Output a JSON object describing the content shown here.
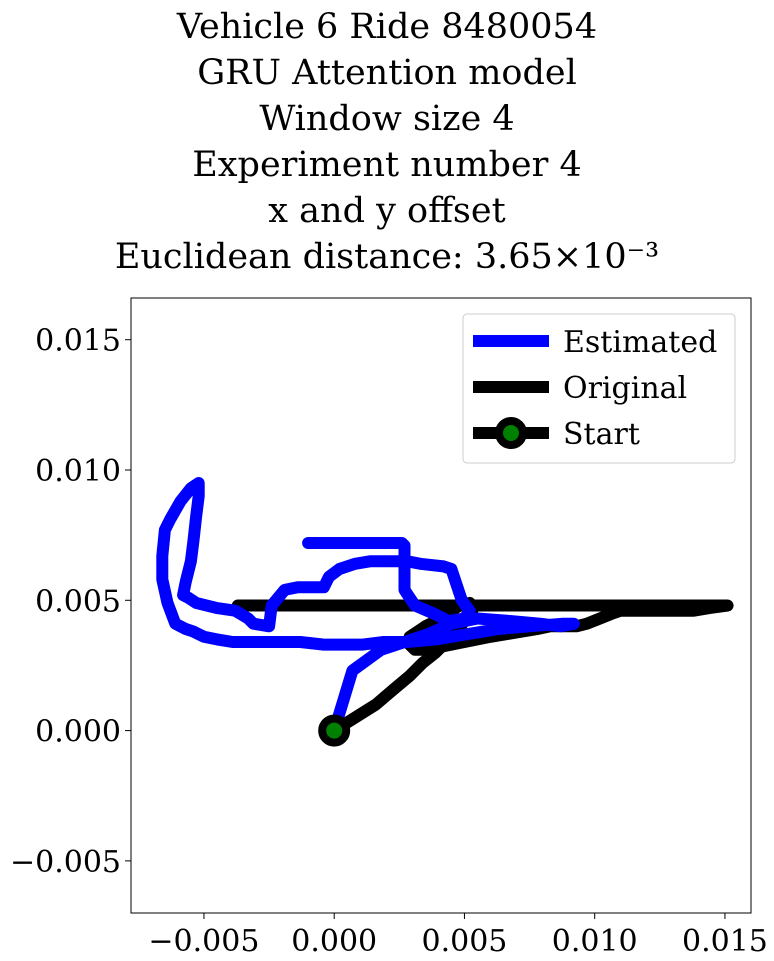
{
  "chart_data": {
    "type": "line",
    "title_lines": [
      "Vehicle 6 Ride 8480054",
      "GRU Attention model",
      "Window size 4",
      "Experiment number 4",
      "x and y offset",
      "Euclidean distance: 3.65×10⁻³"
    ],
    "xlabel": "",
    "ylabel": "",
    "xlim": [
      -0.0078,
      0.016
    ],
    "ylim": [
      -0.007,
      0.0166
    ],
    "xticks": [
      -0.005,
      0.0,
      0.005,
      0.01,
      0.015
    ],
    "xtick_labels": [
      "−0.005",
      "0.000",
      "0.005",
      "0.010",
      "0.015"
    ],
    "yticks": [
      -0.005,
      0.0,
      0.005,
      0.01,
      0.015
    ],
    "ytick_labels": [
      "−0.005",
      "0.000",
      "0.005",
      "0.010",
      "0.015"
    ],
    "grid": false,
    "legend_position": "top-right",
    "series": [
      {
        "name": "Estimated",
        "color": "#0000ff",
        "x": [
          0.0,
          0.0007,
          0.0018,
          0.0027,
          0.0036,
          0.0045,
          0.0055,
          0.0068,
          0.0079,
          0.0087,
          0.0092,
          0.0088,
          0.0075,
          0.0063,
          0.0051,
          0.0039,
          0.0028,
          0.0019,
          0.0011,
          0.0004,
          -0.0004,
          -0.0013,
          -0.0022,
          -0.0031,
          -0.0039,
          -0.0045,
          -0.005,
          -0.0054,
          -0.0057,
          -0.0061,
          -0.0064,
          -0.0066,
          -0.0066,
          -0.0065,
          -0.0063,
          -0.0059,
          -0.0055,
          -0.0052,
          -0.0052,
          -0.0053,
          -0.0054,
          -0.0055,
          -0.0057,
          -0.0058,
          -0.0056,
          -0.0053,
          -0.0045,
          -0.0038,
          -0.0033,
          -0.0031,
          -0.0025,
          -0.0024,
          -0.0019,
          -0.0014,
          -0.0009,
          -0.0004,
          -0.0002,
          0.0002,
          0.0008,
          0.0014,
          0.0021,
          0.0028,
          0.0033,
          0.0042,
          0.0045,
          0.0047,
          0.0049,
          0.0052,
          0.005,
          0.0044,
          0.0038,
          0.0031,
          0.0027,
          0.0027,
          0.0027,
          0.0027,
          0.0026,
          0.002,
          0.0012,
          0.0004,
          -0.0002,
          -0.0001,
          -0.0005,
          -0.0007,
          -0.0008,
          -0.0009,
          -0.0009,
          -0.0009,
          -0.001,
          -0.001,
          -0.0009,
          -0.0007,
          -0.0004,
          -0.0001,
          0.0003,
          0.0006,
          0.0009,
          0.0012
        ],
        "y": [
          0.0,
          0.0023,
          0.0031,
          0.0034,
          0.0037,
          0.0041,
          0.0043,
          0.0042,
          0.0041,
          0.004,
          0.0041,
          0.0041,
          0.004,
          0.0039,
          0.0037,
          0.0035,
          0.0034,
          0.0034,
          0.0033,
          0.0033,
          0.0033,
          0.0034,
          0.0034,
          0.0034,
          0.0034,
          0.0035,
          0.0036,
          0.0038,
          0.0039,
          0.0041,
          0.0049,
          0.0058,
          0.0067,
          0.0077,
          0.0081,
          0.0088,
          0.0093,
          0.0095,
          0.009,
          0.0082,
          0.0073,
          0.0065,
          0.0057,
          0.0052,
          0.0051,
          0.0049,
          0.0047,
          0.0046,
          0.0043,
          0.0041,
          0.004,
          0.0048,
          0.0054,
          0.0055,
          0.0055,
          0.0055,
          0.0059,
          0.0062,
          0.0064,
          0.0065,
          0.0065,
          0.0065,
          0.0064,
          0.0063,
          0.0062,
          0.0056,
          0.005,
          0.0046,
          0.0043,
          0.0042,
          0.0045,
          0.0048,
          0.0054,
          0.006,
          0.0066,
          0.0071,
          0.0072,
          0.0072,
          0.0072,
          0.0072,
          0.0072,
          0.0072,
          0.0072,
          0.0072,
          0.0072,
          0.0072,
          0.0072,
          0.0072,
          0.0072,
          0.0072,
          0.0072,
          0.0072,
          0.0072,
          0.0072,
          0.0072,
          0.0072,
          0.0072,
          0.0072
        ]
      },
      {
        "name": "Original",
        "color": "#000000",
        "x": [
          0.0,
          0.0008,
          0.0016,
          0.0023,
          0.0029,
          0.0034,
          0.0039,
          0.0043,
          0.0047,
          0.005,
          0.0053,
          0.0052,
          0.0048,
          0.0044,
          0.0039,
          0.0035,
          0.0032,
          0.0029,
          0.0029,
          0.0031,
          0.0035,
          0.004,
          0.0045,
          0.005,
          0.0055,
          0.006,
          0.0066,
          0.0072,
          0.0078,
          0.0083,
          0.0088,
          0.0093,
          0.0097,
          0.0102,
          0.0107,
          0.011,
          0.0114,
          0.0118,
          0.0124,
          0.0131,
          0.0138,
          0.0144,
          0.0151,
          0.0149,
          0.0142,
          0.0135,
          0.0127,
          0.0119,
          0.011,
          0.0101,
          0.0092,
          0.0083,
          0.0075,
          0.0066,
          0.0057,
          0.0049,
          0.0042,
          0.0036,
          0.0031,
          0.0025,
          0.002,
          0.0015,
          0.0009,
          0.0004,
          -0.0001,
          -0.0005,
          -0.001,
          -0.0014,
          -0.0018,
          -0.0022,
          -0.0026,
          -0.003,
          -0.0033,
          -0.0035,
          -0.0037,
          -0.0035,
          -0.0032,
          -0.003,
          -0.0027,
          -0.0025,
          -0.0024,
          -0.0023,
          -0.0024,
          -0.0026,
          -0.0027,
          -0.0028,
          -0.0031,
          -0.0034,
          -0.0035,
          -0.0036,
          -0.0035,
          -0.0033,
          -0.0031,
          -0.0028,
          -0.0026,
          -0.0026,
          -0.0027,
          -0.0025,
          -0.0022,
          -0.0018,
          -0.0013,
          -0.0008,
          -0.0003,
          0.0001,
          0.0005,
          0.001,
          0.0015,
          0.002,
          0.0025,
          0.003,
          0.0035,
          0.0039,
          0.0042,
          0.0046,
          0.0048
        ],
        "y": [
          0.0,
          0.0005,
          0.001,
          0.0016,
          0.0021,
          0.0026,
          0.003,
          0.0034,
          0.0038,
          0.0042,
          0.0046,
          0.0049,
          0.0048,
          0.0045,
          0.0042,
          0.004,
          0.0038,
          0.0036,
          0.0033,
          0.0031,
          0.0031,
          0.0032,
          0.0033,
          0.0034,
          0.0035,
          0.0036,
          0.0037,
          0.0038,
          0.0039,
          0.004,
          0.004,
          0.004,
          0.0041,
          0.0043,
          0.0045,
          0.0046,
          0.0046,
          0.0046,
          0.0046,
          0.0046,
          0.0046,
          0.0047,
          0.0048,
          0.0048,
          0.0048,
          0.0048,
          0.0048,
          0.0048,
          0.0048,
          0.0048,
          0.0048,
          0.0048,
          0.0048,
          0.0048,
          0.0048,
          0.0048,
          0.0048,
          0.0048,
          0.0048,
          0.0048,
          0.0048,
          0.0048,
          0.0048,
          0.0048,
          0.0048,
          0.0048,
          0.0048,
          0.0048,
          0.0048,
          0.0048,
          0.0048,
          0.0048,
          0.0048,
          0.0048,
          0.0048,
          0.0048,
          0.0048,
          0.0048,
          0.0048,
          0.0048,
          0.0048,
          0.0048,
          0.0048,
          0.0048,
          0.0048,
          0.0048,
          0.0048,
          0.0048,
          0.0048,
          0.0048,
          0.0048,
          0.0048,
          0.0048,
          0.0048,
          0.0048,
          0.0048,
          0.0048,
          0.0048,
          0.0048,
          0.0048,
          0.0048,
          0.0048,
          0.0048,
          0.0048,
          0.0048,
          0.0048,
          0.0048,
          0.0048,
          0.0048,
          0.0048,
          0.0048,
          0.0048,
          0.0048,
          0.0048,
          0.0048
        ]
      },
      {
        "name": "Start",
        "color": "#000000",
        "marker_face_color": "#008000",
        "x": [
          0.0
        ],
        "y": [
          0.0
        ]
      }
    ]
  }
}
